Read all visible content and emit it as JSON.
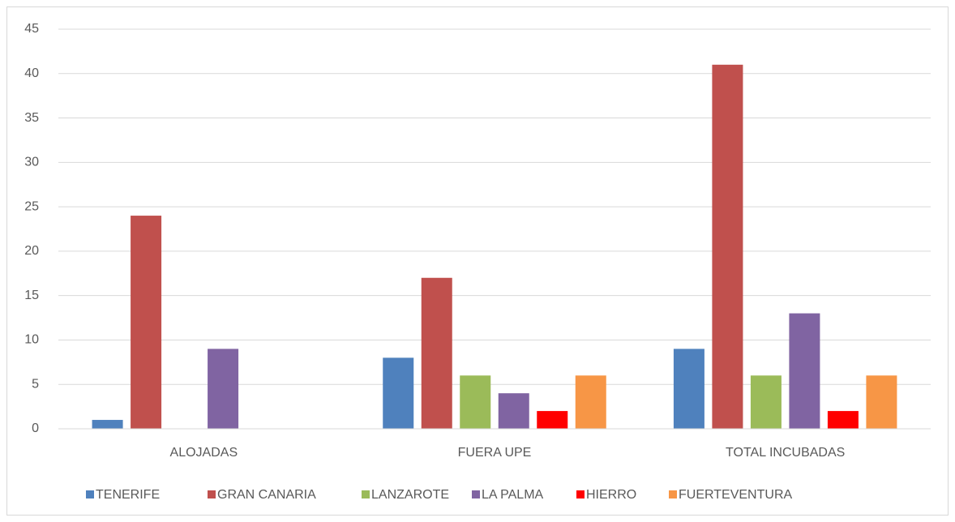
{
  "chart_data": {
    "type": "bar",
    "categories": [
      "ALOJADAS",
      "FUERA UPE",
      "TOTAL INCUBADAS"
    ],
    "series": [
      {
        "name": "TENERIFE",
        "color": "#4f81bd",
        "values": [
          1,
          8,
          9
        ]
      },
      {
        "name": "GRAN CANARIA",
        "color": "#c0504d",
        "values": [
          24,
          17,
          41
        ]
      },
      {
        "name": "LANZAROTE",
        "color": "#9bbb59",
        "values": [
          0,
          6,
          6
        ]
      },
      {
        "name": "LA PALMA",
        "color": "#8064a2",
        "values": [
          9,
          4,
          13
        ]
      },
      {
        "name": "HIERRO",
        "color": "#ff0000",
        "values": [
          0,
          2,
          2
        ]
      },
      {
        "name": "FUERTEVENTURA",
        "color": "#f79646",
        "values": [
          0,
          6,
          6
        ]
      }
    ],
    "ylim": [
      0,
      45
    ],
    "yticks": [
      0,
      5,
      10,
      15,
      20,
      25,
      30,
      35,
      40,
      45
    ],
    "grid": true,
    "legend": "bottom"
  }
}
